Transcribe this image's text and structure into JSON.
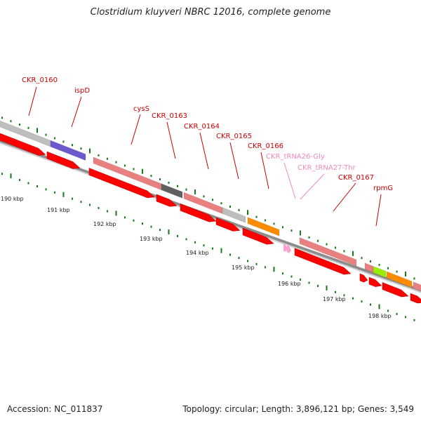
{
  "title": "Clostridium kluyveri NBRC 12016, complete genome",
  "footer": {
    "accession": "Accession: NC_011837",
    "summary": "Topology: circular; Length: 3,896,121 bp; Genes: 3,549"
  },
  "colors": {
    "cds": "#ff0000",
    "cds_dark": "#b00000",
    "pink": "#e88080",
    "gray": "#bebebe",
    "dark_gray": "#606060",
    "purple": "#6a5acd",
    "orange": "#ff8c00",
    "lime": "#99ee00",
    "trna": "#ff9ed0",
    "label_red": "#cc0000",
    "label_pink": "#f088c0",
    "tick": "#1a7a1a",
    "backbone": "#8c8c8c"
  },
  "kbp_labels": [
    "190 kbp",
    "191 kbp",
    "192 kbp",
    "193 kbp",
    "194 kbp",
    "195 kbp",
    "196 kbp",
    "197 kbp",
    "198 kbp"
  ],
  "gene_labels": [
    {
      "text": "CKR_0160",
      "color": "label_red"
    },
    {
      "text": "ispD",
      "color": "label_red"
    },
    {
      "text": "cysS",
      "color": "label_red"
    },
    {
      "text": "CKR_0163",
      "color": "label_red"
    },
    {
      "text": "CKR_0164",
      "color": "label_red"
    },
    {
      "text": "CKR_0165",
      "color": "label_red"
    },
    {
      "text": "CKR_0166",
      "color": "label_red"
    },
    {
      "text": "CKR_tRNA26-Gly",
      "color": "label_pink"
    },
    {
      "text": "CKR_tRNA27-Thr",
      "color": "label_pink"
    },
    {
      "text": "CKR_0167",
      "color": "label_red"
    },
    {
      "text": "rpmG",
      "color": "label_red"
    }
  ]
}
